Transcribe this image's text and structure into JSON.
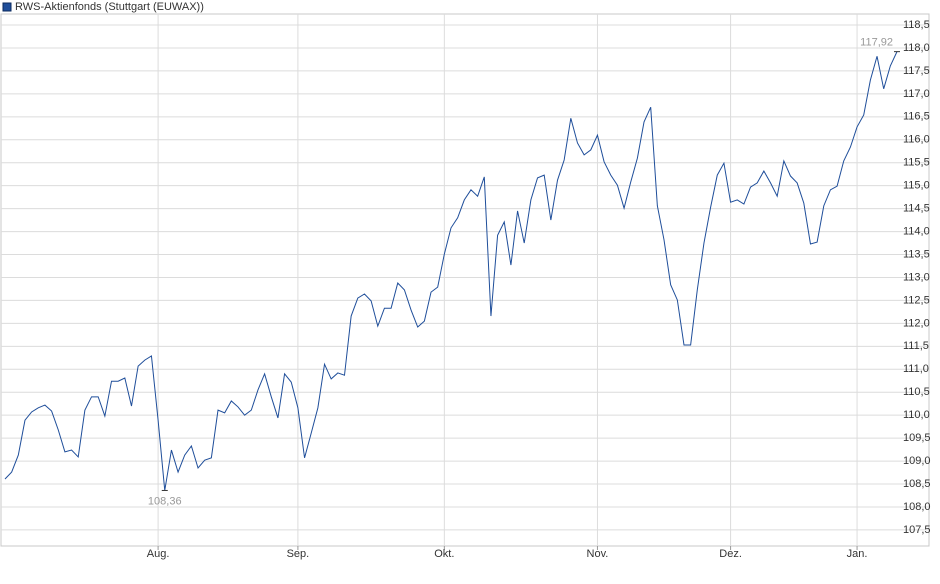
{
  "chart_data": {
    "type": "line",
    "legend": "RWS-Aktienfonds (Stuttgart (EUWAX))",
    "categories": [
      null,
      null,
      null,
      null,
      null,
      null,
      null,
      null,
      null,
      null,
      null,
      null,
      null,
      null,
      null,
      null,
      null,
      null,
      null,
      null,
      null,
      null,
      null,
      "Aug.",
      null,
      null,
      null,
      null,
      null,
      null,
      null,
      null,
      null,
      null,
      null,
      null,
      null,
      null,
      null,
      null,
      null,
      null,
      null,
      null,
      "Sep.",
      null,
      null,
      null,
      null,
      null,
      null,
      null,
      null,
      null,
      null,
      null,
      null,
      null,
      null,
      null,
      null,
      null,
      null,
      null,
      null,
      null,
      "Okt.",
      null,
      null,
      null,
      null,
      null,
      null,
      null,
      null,
      null,
      null,
      null,
      null,
      null,
      null,
      null,
      null,
      null,
      null,
      null,
      null,
      null,
      null,
      "Nov.",
      null,
      null,
      null,
      null,
      null,
      null,
      null,
      null,
      null,
      null,
      null,
      null,
      null,
      null,
      null,
      null,
      null,
      null,
      null,
      "Dez.",
      null,
      null,
      null,
      null,
      null,
      null,
      null,
      null,
      null,
      null,
      null,
      null,
      null,
      null,
      null,
      null,
      null,
      null,
      "Jan.",
      null,
      null,
      null,
      null,
      null,
      null
    ],
    "series": [
      {
        "name": "RWS-Aktienfonds (Stuttgart (EUWAX))",
        "color": "#1f4e9a",
        "values": [
          108.61,
          108.76,
          109.13,
          109.89,
          110.07,
          110.16,
          110.22,
          110.09,
          109.68,
          109.2,
          109.24,
          109.09,
          110.11,
          110.4,
          110.4,
          109.98,
          110.74,
          110.74,
          110.81,
          110.2,
          111.07,
          111.2,
          111.29,
          109.89,
          108.36,
          109.24,
          108.76,
          109.13,
          109.33,
          108.85,
          109.02,
          109.07,
          110.11,
          110.05,
          110.31,
          110.18,
          110.0,
          110.11,
          110.55,
          110.9,
          110.4,
          109.94,
          110.9,
          110.72,
          110.16,
          109.07,
          109.61,
          110.16,
          111.11,
          110.79,
          110.92,
          110.87,
          112.16,
          112.55,
          112.64,
          112.49,
          111.94,
          112.33,
          112.33,
          112.88,
          112.73,
          112.29,
          111.92,
          112.05,
          112.68,
          112.79,
          113.51,
          114.08,
          114.3,
          114.69,
          114.91,
          114.77,
          115.19,
          112.16,
          113.92,
          114.21,
          113.27,
          114.45,
          113.75,
          114.69,
          115.17,
          115.23,
          114.25,
          115.12,
          115.56,
          116.47,
          115.93,
          115.67,
          115.78,
          116.1,
          115.52,
          115.23,
          115.01,
          114.51,
          115.08,
          115.6,
          116.39,
          116.71,
          114.56,
          113.82,
          112.84,
          112.51,
          111.53,
          111.53,
          112.73,
          113.75,
          114.53,
          115.23,
          115.49,
          114.64,
          114.69,
          114.6,
          114.97,
          115.06,
          115.32,
          115.06,
          114.77,
          115.54,
          115.21,
          115.06,
          114.62,
          113.73,
          113.77,
          114.56,
          114.91,
          114.99,
          115.54,
          115.84,
          116.28,
          116.54,
          117.3,
          117.82,
          117.11,
          117.61,
          117.92
        ]
      }
    ],
    "annotations": [
      {
        "value": 108.36,
        "label": "108,36"
      },
      {
        "value": 117.92,
        "label": "117,92"
      }
    ],
    "ylim": [
      107.15,
      118.74
    ],
    "yticks": [
      {
        "value": 107.5,
        "label": "107,5"
      },
      {
        "value": 108,
        "label": "108,0"
      },
      {
        "value": 108.5,
        "label": "108,5"
      },
      {
        "value": 109,
        "label": "109,0"
      },
      {
        "value": 109.5,
        "label": "109,5"
      },
      {
        "value": 110,
        "label": "110,0"
      },
      {
        "value": 110.5,
        "label": "110,5"
      },
      {
        "value": 111,
        "label": "111,0"
      },
      {
        "value": 111.5,
        "label": "111,5"
      },
      {
        "value": 112,
        "label": "112,0"
      },
      {
        "value": 112.5,
        "label": "112,5"
      },
      {
        "value": 113,
        "label": "113,0"
      },
      {
        "value": 113.5,
        "label": "113,5"
      },
      {
        "value": 114,
        "label": "114,0"
      },
      {
        "value": 114.5,
        "label": "114,5"
      },
      {
        "value": 115,
        "label": "115,0"
      },
      {
        "value": 115.5,
        "label": "115,5"
      },
      {
        "value": 116,
        "label": "116,0"
      },
      {
        "value": 116.5,
        "label": "116,5"
      },
      {
        "value": 117,
        "label": "117,0"
      },
      {
        "value": 117.5,
        "label": "117,5"
      },
      {
        "value": 118,
        "label": "118,0"
      },
      {
        "value": 118.5,
        "label": "118,5"
      }
    ],
    "grid": true
  }
}
